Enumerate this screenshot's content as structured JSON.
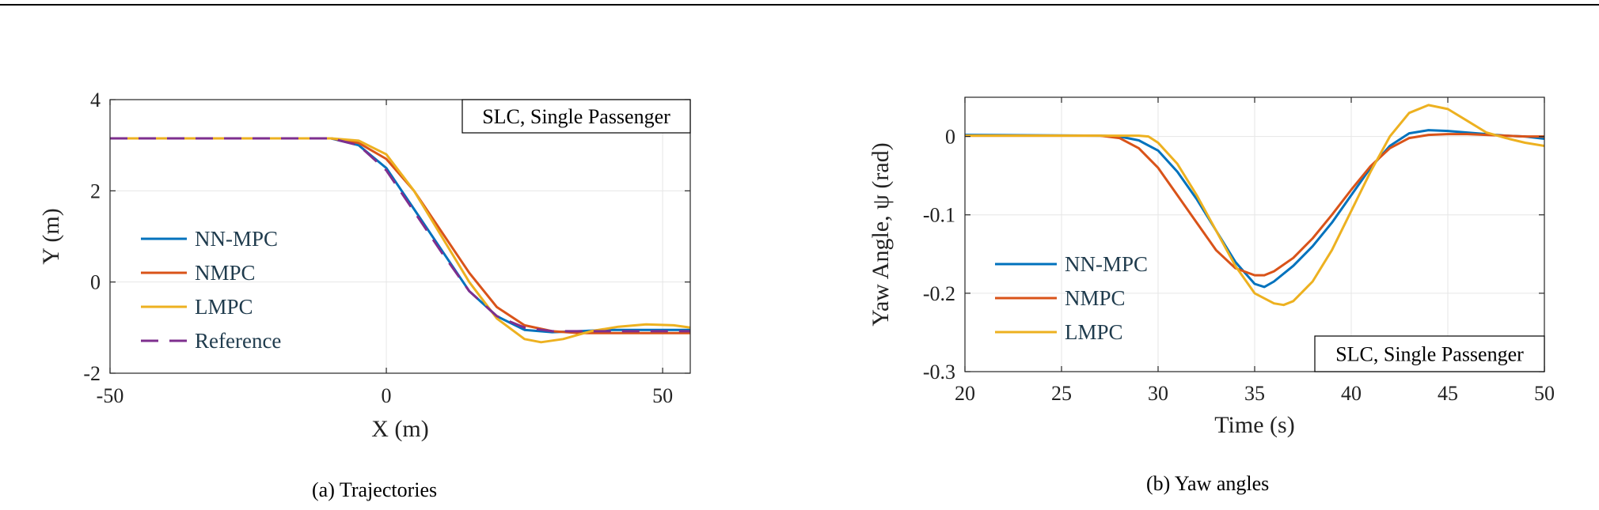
{
  "chart_data": [
    {
      "type": "line",
      "caption": "(a) Trajectories",
      "xlabel": "X (m)",
      "ylabel": "Y (m)",
      "xlim": [
        -50,
        55
      ],
      "ylim": [
        -2,
        4
      ],
      "xticks": [
        "-50",
        "0",
        "50"
      ],
      "yticks": [
        "-2",
        "0",
        "2",
        "4"
      ],
      "xtick_values": [
        -50,
        0,
        50
      ],
      "ytick_values": [
        -2,
        0,
        2,
        4
      ],
      "grid": true,
      "legend_position": "left",
      "annotation": "SLC, Single Passenger",
      "series": [
        {
          "name": "NN-MPC",
          "color": "#0072BD",
          "dash": false,
          "x": [
            -50,
            -10,
            -5,
            0,
            5,
            10,
            15,
            20,
            25,
            30,
            35,
            40,
            45,
            50,
            55
          ],
          "y": [
            3.15,
            3.15,
            3.0,
            2.5,
            1.6,
            0.7,
            -0.2,
            -0.75,
            -1.05,
            -1.1,
            -1.08,
            -1.05,
            -1.05,
            -1.05,
            -1.05
          ]
        },
        {
          "name": "NMPC",
          "color": "#D95319",
          "dash": false,
          "x": [
            -50,
            -10,
            -5,
            0,
            5,
            10,
            15,
            20,
            25,
            30,
            35,
            40,
            45,
            50,
            55
          ],
          "y": [
            3.15,
            3.15,
            3.05,
            2.7,
            2.0,
            1.1,
            0.2,
            -0.55,
            -0.95,
            -1.08,
            -1.12,
            -1.12,
            -1.12,
            -1.12,
            -1.12
          ]
        },
        {
          "name": "LMPC",
          "color": "#EDB120",
          "dash": false,
          "x": [
            -50,
            -10,
            -5,
            0,
            5,
            10,
            15,
            20,
            25,
            28,
            32,
            37,
            42,
            47,
            52,
            55
          ],
          "y": [
            3.15,
            3.15,
            3.1,
            2.8,
            2.0,
            1.0,
            0.0,
            -0.8,
            -1.25,
            -1.32,
            -1.25,
            -1.08,
            -0.98,
            -0.93,
            -0.95,
            -1.0
          ]
        },
        {
          "name": "Reference",
          "color": "#7E2F8E",
          "dash": true,
          "x": [
            -50,
            -10,
            -5,
            0,
            5,
            10,
            15,
            20,
            25,
            30,
            35,
            40,
            45,
            50,
            55
          ],
          "y": [
            3.15,
            3.15,
            3.0,
            2.45,
            1.55,
            0.65,
            -0.2,
            -0.75,
            -1.0,
            -1.08,
            -1.08,
            -1.08,
            -1.08,
            -1.08,
            -1.08
          ]
        }
      ]
    },
    {
      "type": "line",
      "caption": "(b) Yaw angles",
      "xlabel": "Time (s)",
      "ylabel": "Yaw Angle, ψ (rad)",
      "xlim": [
        20,
        50
      ],
      "ylim": [
        -0.3,
        0.05
      ],
      "xticks": [
        "20",
        "25",
        "30",
        "35",
        "40",
        "45",
        "50"
      ],
      "yticks": [
        "-0.3",
        "-0.2",
        "-0.1",
        "0"
      ],
      "xtick_values": [
        20,
        25,
        30,
        35,
        40,
        45,
        50
      ],
      "ytick_values": [
        -0.3,
        -0.2,
        -0.1,
        0
      ],
      "grid": true,
      "legend_position": "left",
      "annotation": "SLC, Single Passenger",
      "series": [
        {
          "name": "NN-MPC",
          "color": "#0072BD",
          "dash": false,
          "x": [
            20,
            27,
            28,
            29,
            30,
            31,
            32,
            33,
            34,
            35,
            35.5,
            36,
            37,
            38,
            39,
            40,
            41,
            42,
            43,
            44,
            45,
            46,
            47,
            48,
            49,
            50
          ],
          "y": [
            0.002,
            0.001,
            0.0,
            -0.005,
            -0.018,
            -0.045,
            -0.08,
            -0.12,
            -0.16,
            -0.188,
            -0.192,
            -0.185,
            -0.165,
            -0.14,
            -0.11,
            -0.075,
            -0.04,
            -0.012,
            0.004,
            0.008,
            0.007,
            0.005,
            0.003,
            0.001,
            0.0,
            -0.003
          ]
        },
        {
          "name": "NMPC",
          "color": "#D95319",
          "dash": false,
          "x": [
            20,
            27,
            28,
            29,
            30,
            31,
            32,
            33,
            34,
            35,
            35.5,
            36,
            37,
            38,
            39,
            40,
            41,
            42,
            43,
            44,
            45,
            46,
            47,
            48,
            49,
            50
          ],
          "y": [
            0.001,
            0.001,
            -0.002,
            -0.015,
            -0.04,
            -0.075,
            -0.11,
            -0.145,
            -0.168,
            -0.177,
            -0.177,
            -0.172,
            -0.155,
            -0.13,
            -0.1,
            -0.068,
            -0.038,
            -0.015,
            -0.002,
            0.002,
            0.003,
            0.003,
            0.002,
            0.001,
            0.0,
            0.0
          ]
        },
        {
          "name": "LMPC",
          "color": "#EDB120",
          "dash": false,
          "x": [
            20,
            29,
            29.5,
            30,
            31,
            32,
            33,
            34,
            35,
            36,
            36.5,
            37,
            38,
            39,
            40,
            41,
            42,
            43,
            44,
            45,
            46,
            47,
            48,
            49,
            50
          ],
          "y": [
            0.001,
            0.001,
            0.0,
            -0.008,
            -0.035,
            -0.075,
            -0.12,
            -0.165,
            -0.2,
            -0.213,
            -0.215,
            -0.21,
            -0.185,
            -0.145,
            -0.095,
            -0.045,
            0.0,
            0.03,
            0.04,
            0.035,
            0.02,
            0.005,
            -0.002,
            -0.008,
            -0.012
          ]
        }
      ]
    }
  ]
}
